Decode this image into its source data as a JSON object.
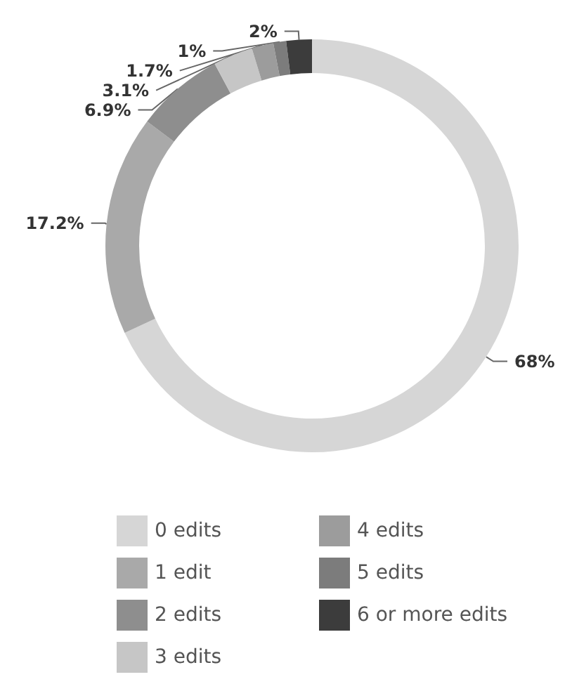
{
  "chart_data": {
    "type": "donut",
    "categories": [
      "0 edits",
      "1 edit",
      "2 edits",
      "3 edits",
      "4 edits",
      "5 edits",
      "6 or more edits"
    ],
    "values": [
      68,
      17.2,
      6.9,
      3.1,
      1.7,
      1,
      2
    ],
    "value_labels": [
      "68%",
      "17.2%",
      "6.9%",
      "3.1%",
      "1.7%",
      "1%",
      "2%"
    ],
    "colors": [
      "#d6d6d6",
      "#a9a9a9",
      "#8e8e8e",
      "#c6c6c6",
      "#9c9c9c",
      "#7c7c7c",
      "#3c3c3c"
    ],
    "legend": "bottom"
  }
}
